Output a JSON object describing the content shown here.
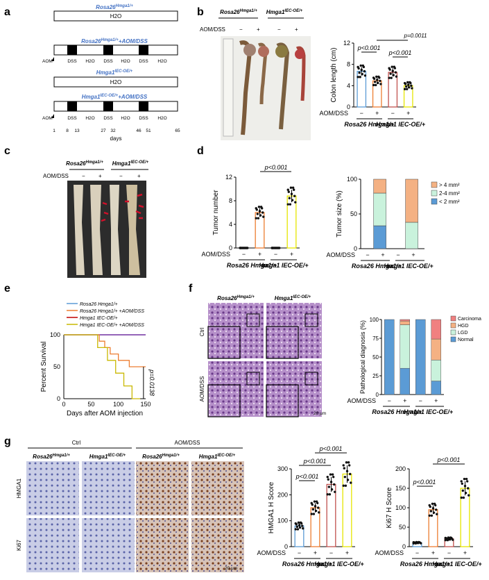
{
  "panel_labels": {
    "a": "a",
    "b": "b",
    "c": "c",
    "d": "d",
    "e": "e",
    "f": "f",
    "g": "g"
  },
  "genotypes": {
    "rosa": "Rosa26",
    "rosa_sup": "Hmga1/+",
    "hmga": "Hmga1",
    "hmga_sup": "IEC-OE/+"
  },
  "common": {
    "aom_dss": "AOM/DSS",
    "minus": "−",
    "plus": "+"
  },
  "panel_a": {
    "row1_title": "Rosa26",
    "row1_sup": "Hmga1/+",
    "row2_title": "Rosa26",
    "row2_sup": "Hmga1/+",
    "row2_suffix": "+AOM/DSS",
    "row3_title": "Hmga1",
    "row3_sup": "IEC-OE/+",
    "row4_title": "Hmga1",
    "row4_sup": "IEC-OE/+",
    "row4_suffix": "+AOM/DSS",
    "h2o": "H2O",
    "dss": "DSS",
    "aom": "AOM",
    "day_ticks": [
      "1",
      "8",
      "13",
      "27",
      "32",
      "46",
      "51",
      "65"
    ],
    "days_label": "days"
  },
  "panel_b": {
    "ylabel": "Colon length (cm)",
    "yticks": [
      "0",
      "4",
      "8",
      "12"
    ],
    "p1": "p<0.001",
    "p2": "p<0.001",
    "p3": "p=0.0011"
  },
  "panel_d": {
    "ylabel1": "Tumor number",
    "yticks1": [
      "0",
      "4",
      "8",
      "12"
    ],
    "p": "p<0.001",
    "ylabel2": "Tumor size (%)",
    "yticks2": [
      "0",
      "50",
      "100"
    ],
    "legend": [
      "> 4 mm²",
      "2-4 mm²",
      "< 2 mm²"
    ]
  },
  "panel_e": {
    "ylabel": "Percent Survival",
    "xlabel": "Days after AOM injection",
    "yticks": [
      "0",
      "50",
      "100"
    ],
    "xticks": [
      "0",
      "50",
      "100",
      "150"
    ],
    "p": "p=0.0138",
    "legend": [
      "Rosa26",
      "+AOM/DSS",
      "Hmga1",
      "+AOM/DSS"
    ]
  },
  "panel_f": {
    "row_ctrl": "Ctrl",
    "row_aom": "AOM/DSS",
    "scale": "20 μm",
    "ylabel": "Pathological diagnosis (%)",
    "yticks": [
      "0",
      "25",
      "50",
      "75",
      "100"
    ],
    "legend": [
      "Carcinoma",
      "HGD",
      "LGD",
      "Normal"
    ]
  },
  "panel_g": {
    "ctrl": "Ctrl",
    "aomdss": "AOM/DSS",
    "row1": "HMGA1",
    "row2": "Ki67",
    "scale": "20 μm",
    "ylabel1": "HMGA1 H Score",
    "yticks1": [
      "0",
      "100",
      "200",
      "300"
    ],
    "ylabel2": "Ki67 H Score",
    "yticks2": [
      "0",
      "50",
      "100",
      "150",
      "200"
    ],
    "p1": "p<0.001",
    "p2": "p<0.001",
    "p3": "p<0.001"
  },
  "chart_data": [
    {
      "type": "bar",
      "panel": "b",
      "ylabel": "Colon length (cm)",
      "ylim": [
        0,
        12
      ],
      "groups": [
        "Rosa26 −",
        "Rosa26 +",
        "Hmga1 −",
        "Hmga1 +"
      ],
      "values": [
        6.7,
        4.9,
        6.5,
        4.0
      ],
      "colors": [
        "#5b9bd5",
        "#ed7d31",
        "#c0504d",
        "#e6e600"
      ]
    },
    {
      "type": "bar",
      "panel": "d-number",
      "ylabel": "Tumor number",
      "ylim": [
        0,
        12
      ],
      "groups": [
        "Rosa26 −",
        "Rosa26 +",
        "Hmga1 −",
        "Hmga1 +"
      ],
      "values": [
        0,
        6,
        0,
        8.8
      ]
    },
    {
      "type": "bar",
      "panel": "d-size",
      "ylabel": "Tumor size (%)",
      "ylim": [
        0,
        100
      ],
      "groups": [
        "Rosa26 +",
        "Hmga1 +"
      ],
      "series": [
        {
          "name": "< 2 mm²",
          "values": [
            33,
            0
          ]
        },
        {
          "name": "2-4 mm²",
          "values": [
            47,
            38
          ]
        },
        {
          "name": "> 4 mm²",
          "values": [
            20,
            62
          ]
        }
      ]
    },
    {
      "type": "line",
      "panel": "e",
      "ylabel": "Percent Survival",
      "xlabel": "Days after AOM injection",
      "xlim": [
        0,
        150
      ],
      "ylim": [
        0,
        100
      ]
    },
    {
      "type": "bar",
      "panel": "f",
      "ylabel": "Pathological diagnosis (%)",
      "ylim": [
        0,
        100
      ],
      "groups": [
        "Rosa26 −",
        "Rosa26 +",
        "Hmga1 −",
        "Hmga1 +"
      ],
      "series": [
        {
          "name": "Normal",
          "values": [
            100,
            35,
            100,
            18
          ]
        },
        {
          "name": "LGD",
          "values": [
            0,
            58,
            0,
            28
          ]
        },
        {
          "name": "HGD",
          "values": [
            0,
            5,
            0,
            28
          ]
        },
        {
          "name": "Carcinoma",
          "values": [
            0,
            2,
            0,
            26
          ]
        }
      ]
    },
    {
      "type": "bar",
      "panel": "g-hmga1",
      "ylabel": "HMGA1 H Score",
      "ylim": [
        0,
        300
      ],
      "groups": [
        "Rosa26 −",
        "Rosa26 +",
        "Hmga1 −",
        "Hmga1 +"
      ],
      "values": [
        80,
        150,
        240,
        280
      ]
    },
    {
      "type": "bar",
      "panel": "g-ki67",
      "ylabel": "Ki67 H Score",
      "ylim": [
        0,
        200
      ],
      "groups": [
        "Rosa26 −",
        "Rosa26 +",
        "Hmga1 −",
        "Hmga1 +"
      ],
      "values": [
        10,
        95,
        20,
        150
      ]
    }
  ]
}
